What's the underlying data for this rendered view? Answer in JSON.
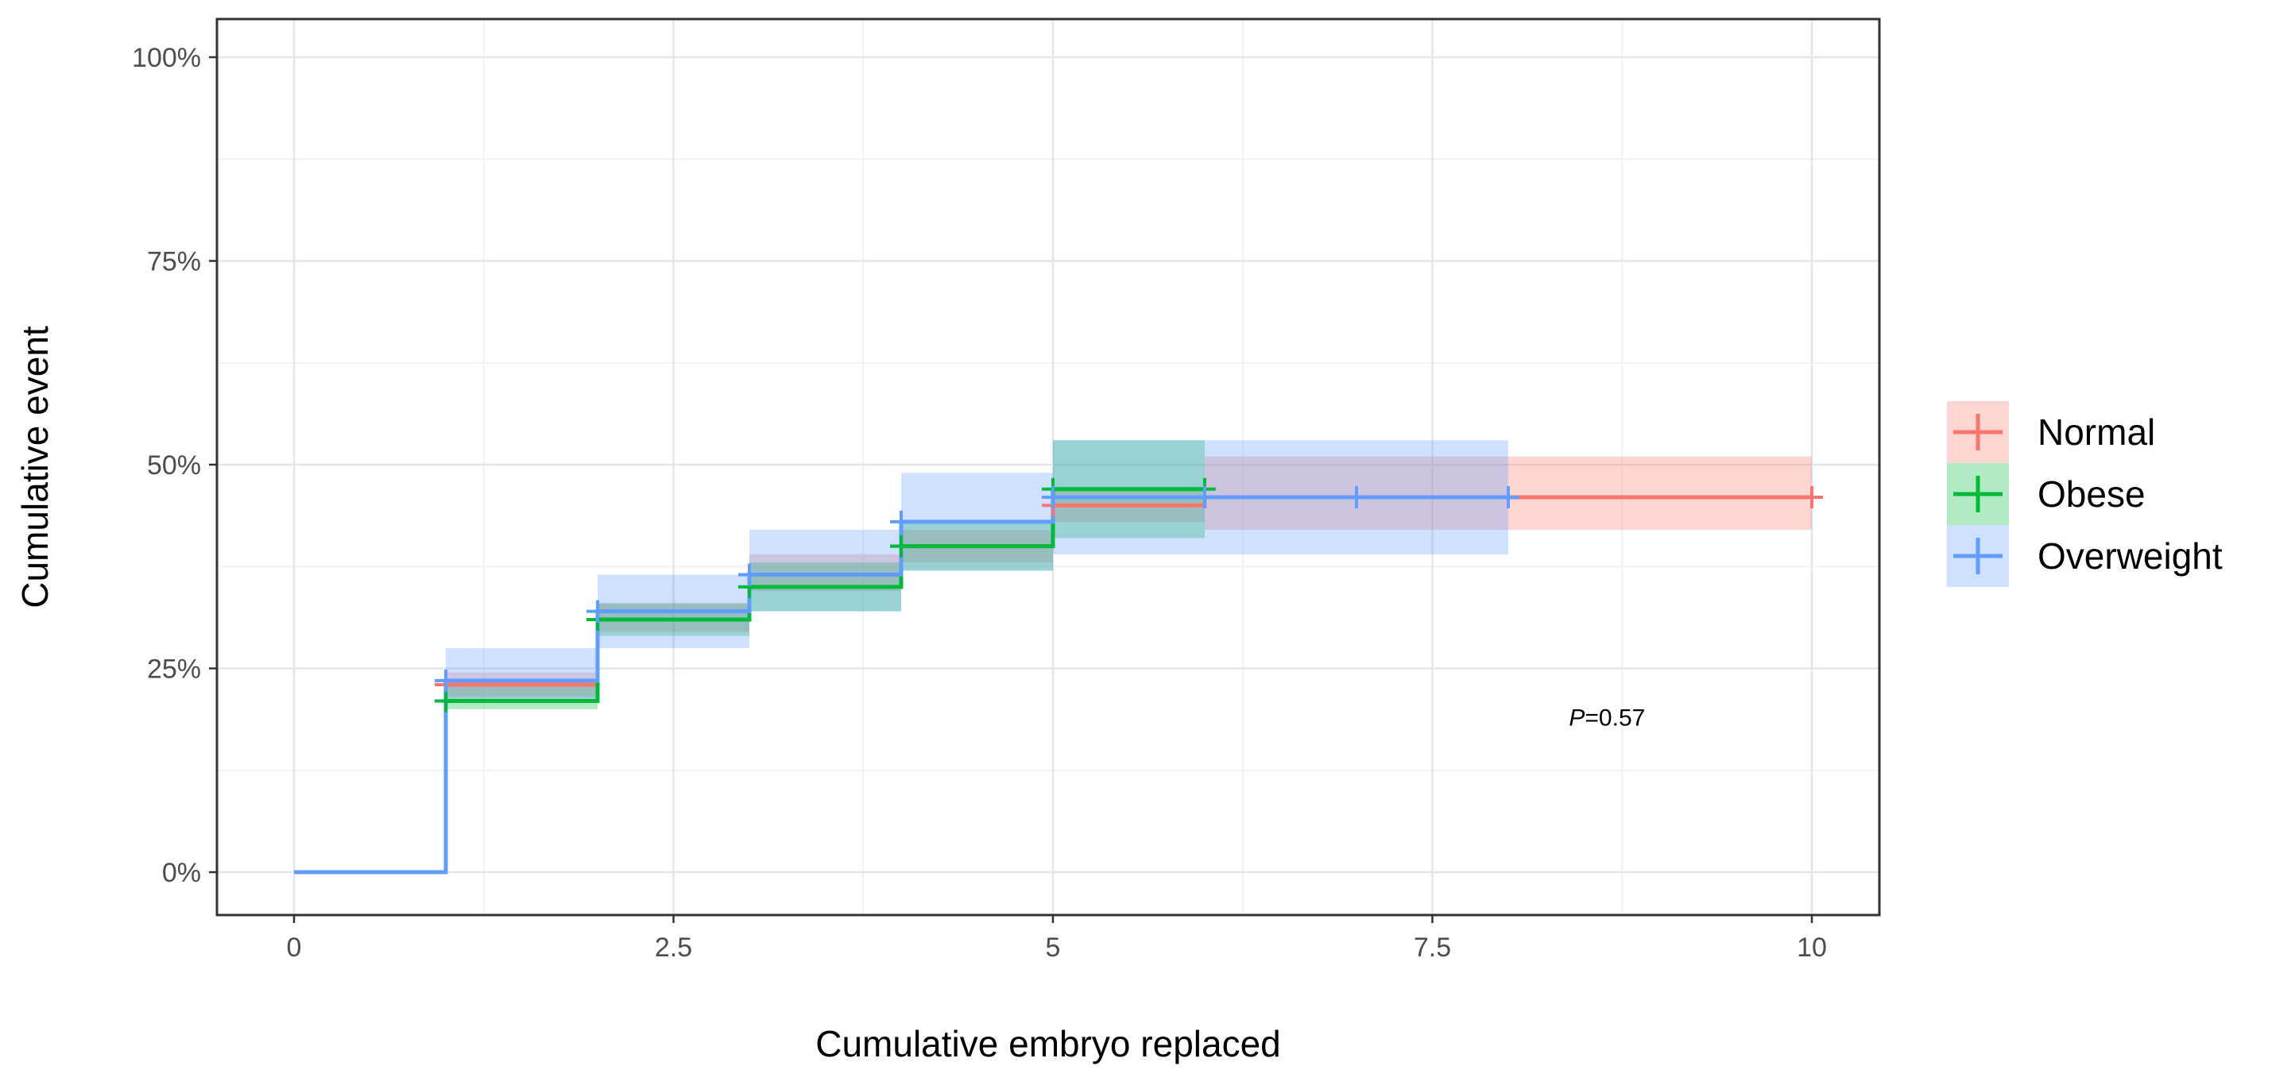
{
  "chart_data": {
    "type": "line",
    "step": true,
    "xlabel": "Cumulative embryo replaced",
    "ylabel": "Cumulative event",
    "xlim": [
      0,
      10.5
    ],
    "ylim": [
      0,
      1
    ],
    "x_ticks": [
      0,
      2.5,
      5,
      7.5,
      10
    ],
    "x_tick_labels": [
      "0",
      "2.5",
      "5",
      "7.5",
      "10"
    ],
    "y_ticks": [
      0,
      0.25,
      0.5,
      0.75,
      1
    ],
    "y_tick_labels": [
      "0%",
      "25%",
      "50%",
      "75%",
      "100%"
    ],
    "grid": true,
    "legend_position": "right",
    "annotation": {
      "italic": "P",
      "rest": "=0.57",
      "x": 8.4,
      "y": 0.18
    },
    "series": [
      {
        "name": "Normal",
        "color": "#f8766d",
        "x": [
          0,
          1,
          2,
          3,
          4,
          5,
          6,
          10
        ],
        "y": [
          0,
          0.23,
          0.31,
          0.365,
          0.4,
          0.45,
          0.46,
          0.46
        ],
        "lower": [
          0,
          0.215,
          0.295,
          0.345,
          0.38,
          0.43,
          0.42,
          0.42
        ],
        "upper": [
          0,
          0.245,
          0.33,
          0.39,
          0.42,
          0.47,
          0.51,
          0.51
        ],
        "censor_x": [
          1,
          2,
          3,
          4,
          5,
          6,
          10
        ],
        "censor_y": [
          0.23,
          0.31,
          0.365,
          0.4,
          0.45,
          0.46,
          0.46
        ]
      },
      {
        "name": "Obese",
        "color": "#00ba38",
        "x": [
          0,
          1,
          2,
          3,
          4,
          5,
          6
        ],
        "y": [
          0,
          0.21,
          0.31,
          0.35,
          0.4,
          0.47,
          0.47
        ],
        "lower": [
          0,
          0.2,
          0.29,
          0.32,
          0.37,
          0.41,
          0.41
        ],
        "upper": [
          0,
          0.23,
          0.33,
          0.38,
          0.43,
          0.53,
          0.53
        ],
        "censor_x": [
          1,
          2,
          3,
          4,
          5,
          6
        ],
        "censor_y": [
          0.21,
          0.31,
          0.35,
          0.4,
          0.47,
          0.47
        ]
      },
      {
        "name": "Overweight",
        "color": "#619cff",
        "x": [
          0,
          1,
          2,
          3,
          4,
          5,
          8
        ],
        "y": [
          0,
          0.235,
          0.32,
          0.365,
          0.43,
          0.46,
          0.46
        ],
        "lower": [
          0,
          0.21,
          0.275,
          0.32,
          0.37,
          0.39,
          0.39
        ],
        "upper": [
          0,
          0.275,
          0.365,
          0.42,
          0.49,
          0.53,
          0.53
        ],
        "censor_x": [
          1,
          2,
          3,
          4,
          5,
          6,
          7,
          8
        ],
        "censor_y": [
          0.235,
          0.32,
          0.365,
          0.43,
          0.46,
          0.46,
          0.46,
          0.46
        ]
      }
    ]
  }
}
